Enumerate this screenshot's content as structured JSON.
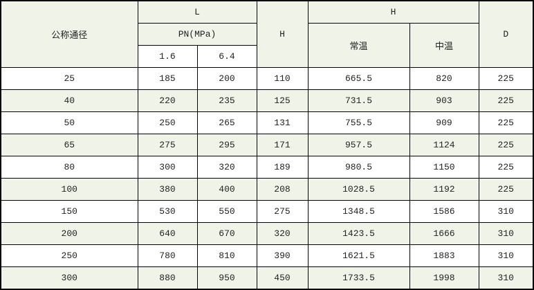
{
  "chart_data": {
    "type": "table",
    "columns": [
      "公称通径",
      "L PN(MPa) 1.6",
      "L PN(MPa) 6.4",
      "H",
      "H 常温",
      "H 中温",
      "D"
    ],
    "rows": [
      [
        "25",
        "185",
        "200",
        "110",
        "665.5",
        "820",
        "225"
      ],
      [
        "40",
        "220",
        "235",
        "125",
        "731.5",
        "903",
        "225"
      ],
      [
        "50",
        "250",
        "265",
        "131",
        "755.5",
        "909",
        "225"
      ],
      [
        "65",
        "275",
        "295",
        "171",
        "957.5",
        "1124",
        "225"
      ],
      [
        "80",
        "300",
        "320",
        "189",
        "980.5",
        "1150",
        "225"
      ],
      [
        "100",
        "380",
        "400",
        "208",
        "1028.5",
        "1192",
        "225"
      ],
      [
        "150",
        "530",
        "550",
        "275",
        "1348.5",
        "1586",
        "310"
      ],
      [
        "200",
        "640",
        "670",
        "320",
        "1423.5",
        "1666",
        "310"
      ],
      [
        "250",
        "780",
        "810",
        "390",
        "1621.5",
        "1883",
        "310"
      ],
      [
        "300",
        "880",
        "950",
        "450",
        "1733.5",
        "1998",
        "310"
      ]
    ],
    "layout": {
      "grid": true,
      "zebra_striping": true,
      "header_rows": 3
    }
  },
  "table": {
    "header": {
      "nominal_diameter": "公称通径",
      "group_l": "L",
      "pn_label": "PN(MPa)",
      "pn_16": "1.6",
      "pn_64": "6.4",
      "col_h": "H",
      "group_h": "H",
      "normal_temp": "常温",
      "medium_temp": "中温",
      "col_d": "D"
    }
  },
  "colors": {
    "border": "#000000",
    "header_bg": "#F0F4E8",
    "row_alt_bg": "#F0F4E8",
    "row_bg": "#FFFFFF",
    "text": "#222222"
  }
}
